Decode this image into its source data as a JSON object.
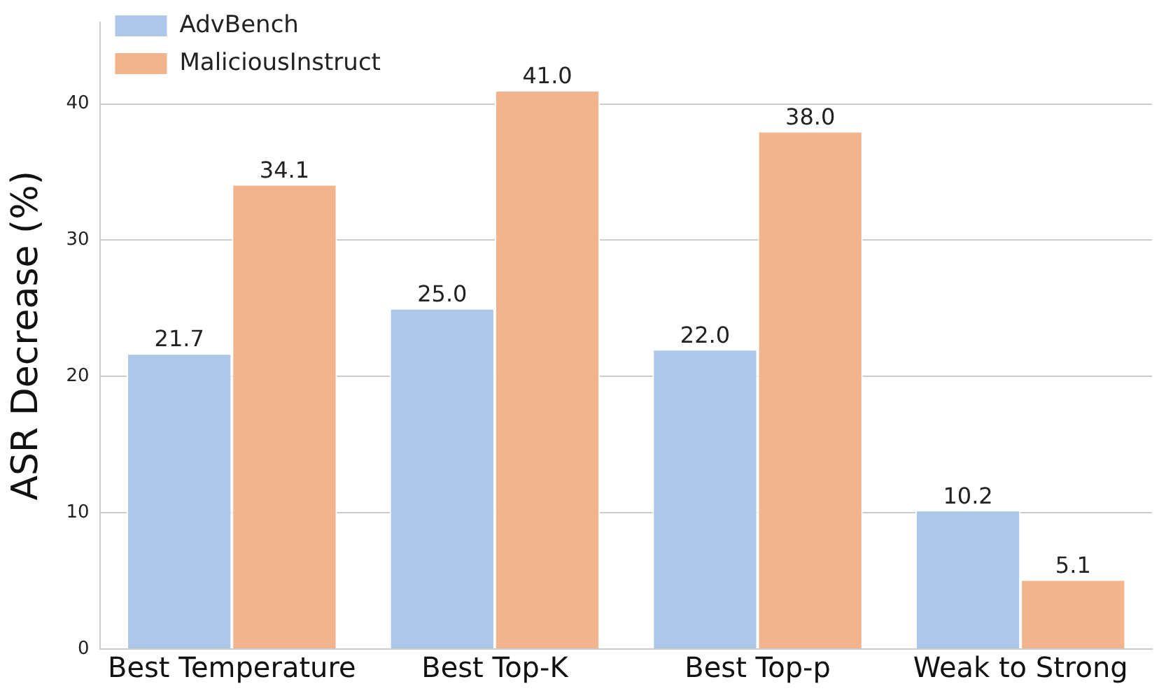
{
  "chart_data": {
    "type": "bar",
    "ylabel": "ASR Decrease (%)",
    "categories": [
      "Best Temperature",
      "Best Top-K",
      "Best Top-p",
      "Weak to Strong"
    ],
    "series": [
      {
        "name": "AdvBench",
        "color": "#aec7e8",
        "values": [
          21.7,
          25.0,
          22.0,
          10.2
        ],
        "value_labels": [
          "21.7",
          "25.0",
          "22.0",
          "10.2"
        ]
      },
      {
        "name": "MaliciousInstruct",
        "color": "#f2b48c",
        "values": [
          34.1,
          41.0,
          38.0,
          5.1
        ],
        "value_labels": [
          "34.1",
          "41.0",
          "38.0",
          "5.1"
        ]
      }
    ],
    "ylim": [
      0,
      46
    ],
    "yticks": [
      0,
      10,
      20,
      30,
      40
    ],
    "grid": "y",
    "legend": "top left"
  }
}
